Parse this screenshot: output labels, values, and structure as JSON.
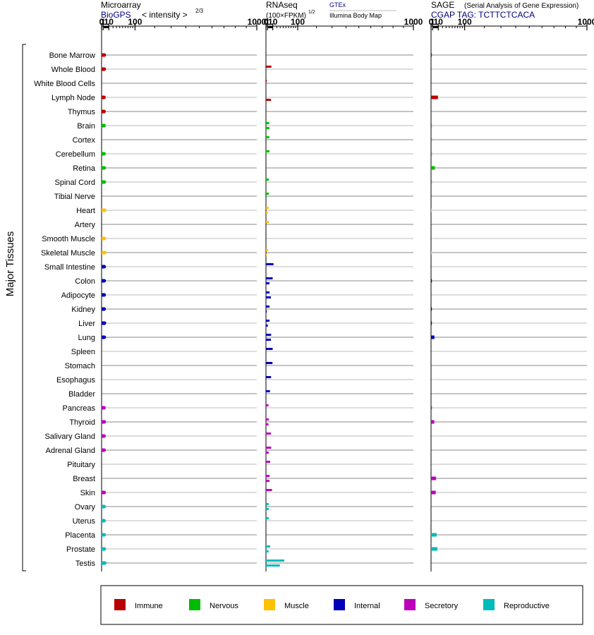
{
  "panels": {
    "microarray": {
      "title": "Microarray",
      "source": "BioGPS",
      "scale_label": "< intensity >",
      "scale_exp": "2/3"
    },
    "rnaseq": {
      "title": "RNAseq",
      "unit": "(100×FPKM)",
      "unit_exp": "1/2",
      "source_primary": "GTEx",
      "source_secondary": "Illumina Body Map"
    },
    "sage": {
      "title": "SAGE",
      "title_note": "(Serial Analysis of Gene Expression)",
      "tag": "CGAP TAG: TCTTCTCACA"
    }
  },
  "y_group_label": "Major Tissues",
  "legend": [
    {
      "label": "Immune",
      "color": "#b90000"
    },
    {
      "label": "Nervous",
      "color": "#00bb00"
    },
    {
      "label": "Muscle",
      "color": "#ffc000"
    },
    {
      "label": "Internal",
      "color": "#0000bb"
    },
    {
      "label": "Secretory",
      "color": "#bb00bb"
    },
    {
      "label": "Reproductive",
      "color": "#00bbbb"
    }
  ],
  "chart_data": [
    {
      "type": "bar",
      "title": "Microarray",
      "subtitle": "BioGPS",
      "xlabel": "< intensity >2/3",
      "x_ticks": [
        "0",
        "1",
        "10",
        "100",
        "1000"
      ],
      "x_tick_values": [
        0,
        1,
        10,
        100,
        1000
      ],
      "xlim": [
        0,
        1000
      ],
      "categories": [
        "Bone Marrow",
        "Whole Blood",
        "White Blood Cells",
        "Lymph Node",
        "Thymus",
        "Brain",
        "Cortex",
        "Cerebellum",
        "Retina",
        "Spinal Cord",
        "Tibial Nerve",
        "Heart",
        "Artery",
        "Smooth Muscle",
        "Skeletal Muscle",
        "Small Intestine",
        "Colon",
        "Adipocyte",
        "Kidney",
        "Liver",
        "Lung",
        "Spleen",
        "Stomach",
        "Esophagus",
        "Bladder",
        "Pancreas",
        "Thyroid",
        "Salivary Gland",
        "Adrenal Gland",
        "Pituitary",
        "Breast",
        "Skin",
        "Ovary",
        "Uterus",
        "Placenta",
        "Prostate",
        "Testis"
      ],
      "groups": [
        "Immune",
        "Immune",
        "Immune",
        "Immune",
        "Immune",
        "Nervous",
        "Nervous",
        "Nervous",
        "Nervous",
        "Nervous",
        "Nervous",
        "Muscle",
        "Muscle",
        "Muscle",
        "Muscle",
        "Internal",
        "Internal",
        "Internal",
        "Internal",
        "Internal",
        "Internal",
        "Internal",
        "Internal",
        "Internal",
        "Internal",
        "Secretory",
        "Secretory",
        "Secretory",
        "Secretory",
        "Secretory",
        "Secretory",
        "Secretory",
        "Reproductive",
        "Reproductive",
        "Reproductive",
        "Reproductive",
        "Reproductive"
      ],
      "series": [
        {
          "values": [
            2.3,
            2.3,
            null,
            2.0,
            2.0,
            2.0,
            null,
            2.0,
            2.3,
            2.3,
            null,
            2.8,
            null,
            2.4,
            2.9,
            2.2,
            2.2,
            2.2,
            2.1,
            2.5,
            2.3,
            null,
            null,
            null,
            null,
            2.0,
            2.3,
            2.0,
            2.1,
            null,
            null,
            2.2,
            2.1,
            2.0,
            2.2,
            2.3,
            2.9
          ]
        }
      ]
    },
    {
      "type": "bar",
      "title": "RNAseq",
      "xlabel": "(100×FPKM)1/2",
      "x_ticks": [
        "0",
        "1",
        "10",
        "100",
        "1000"
      ],
      "x_tick_values": [
        0,
        1,
        10,
        100,
        1000
      ],
      "xlim": [
        0,
        1000
      ],
      "categories": [
        "Bone Marrow",
        "Whole Blood",
        "White Blood Cells",
        "Lymph Node",
        "Thymus",
        "Brain",
        "Cortex",
        "Cerebellum",
        "Retina",
        "Spinal Cord",
        "Tibial Nerve",
        "Heart",
        "Artery",
        "Smooth Muscle",
        "Skeletal Muscle",
        "Small Intestine",
        "Colon",
        "Adipocyte",
        "Kidney",
        "Liver",
        "Lung",
        "Spleen",
        "Stomach",
        "Esophagus",
        "Bladder",
        "Pancreas",
        "Thyroid",
        "Salivary Gland",
        "Adrenal Gland",
        "Pituitary",
        "Breast",
        "Skin",
        "Ovary",
        "Uterus",
        "Placenta",
        "Prostate",
        "Testis"
      ],
      "series": [
        {
          "name": "GTEx",
          "values": [
            null,
            7.0,
            0.06,
            null,
            null,
            3.2,
            3.4,
            3.7,
            null,
            2.7,
            2.7,
            2.4,
            2.5,
            null,
            1.8,
            11.5,
            9.7,
            3.8,
            3.8,
            3.8,
            6.5,
            9.7,
            9.3,
            6.4,
            4.5,
            2.2,
            2.7,
            6.1,
            6.7,
            4.9,
            3.8,
            8.2,
            2.5,
            2.6,
            null,
            4.9,
            44
          ]
        },
        {
          "name": "Illumina Body Map",
          "values": [
            null,
            null,
            null,
            6.2,
            null,
            3.6,
            null,
            null,
            null,
            null,
            null,
            1.3,
            null,
            null,
            0.02,
            null,
            3.6,
            6.1,
            0.06,
            1.5,
            6.2,
            null,
            null,
            null,
            null,
            null,
            2.2,
            null,
            2.5,
            null,
            3.6,
            null,
            2.6,
            null,
            null,
            2.5,
            29
          ]
        }
      ]
    },
    {
      "type": "bar",
      "title": "SAGE",
      "subtitle": "CGAP TAG: TCTTCTCACA",
      "x_ticks": [
        "0",
        "1",
        "10",
        "100",
        "1000"
      ],
      "x_tick_values": [
        0,
        1,
        10,
        100,
        1000
      ],
      "xlim": [
        0,
        1000
      ],
      "categories": [
        "Bone Marrow",
        "Whole Blood",
        "White Blood Cells",
        "Lymph Node",
        "Thymus",
        "Brain",
        "Cortex",
        "Cerebellum",
        "Retina",
        "Spinal Cord",
        "Tibial Nerve",
        "Heart",
        "Artery",
        "Smooth Muscle",
        "Skeletal Muscle",
        "Small Intestine",
        "Colon",
        "Adipocyte",
        "Kidney",
        "Liver",
        "Lung",
        "Spleen",
        "Stomach",
        "Esophagus",
        "Bladder",
        "Pancreas",
        "Thyroid",
        "Salivary Gland",
        "Adrenal Gland",
        "Pituitary",
        "Breast",
        "Skin",
        "Ovary",
        "Uterus",
        "Placenta",
        "Prostate",
        "Testis"
      ],
      "series": [
        {
          "values": [
            0.05,
            null,
            null,
            9.3,
            null,
            0.05,
            0.05,
            0.05,
            3.9,
            0.05,
            null,
            0.03,
            null,
            null,
            0.03,
            null,
            0.06,
            null,
            0.06,
            0.06,
            3.2,
            null,
            null,
            null,
            null,
            0.06,
            3.0,
            null,
            null,
            null,
            5.7,
            5.2,
            null,
            null,
            6.8,
            8.3,
            null
          ]
        }
      ]
    }
  ]
}
